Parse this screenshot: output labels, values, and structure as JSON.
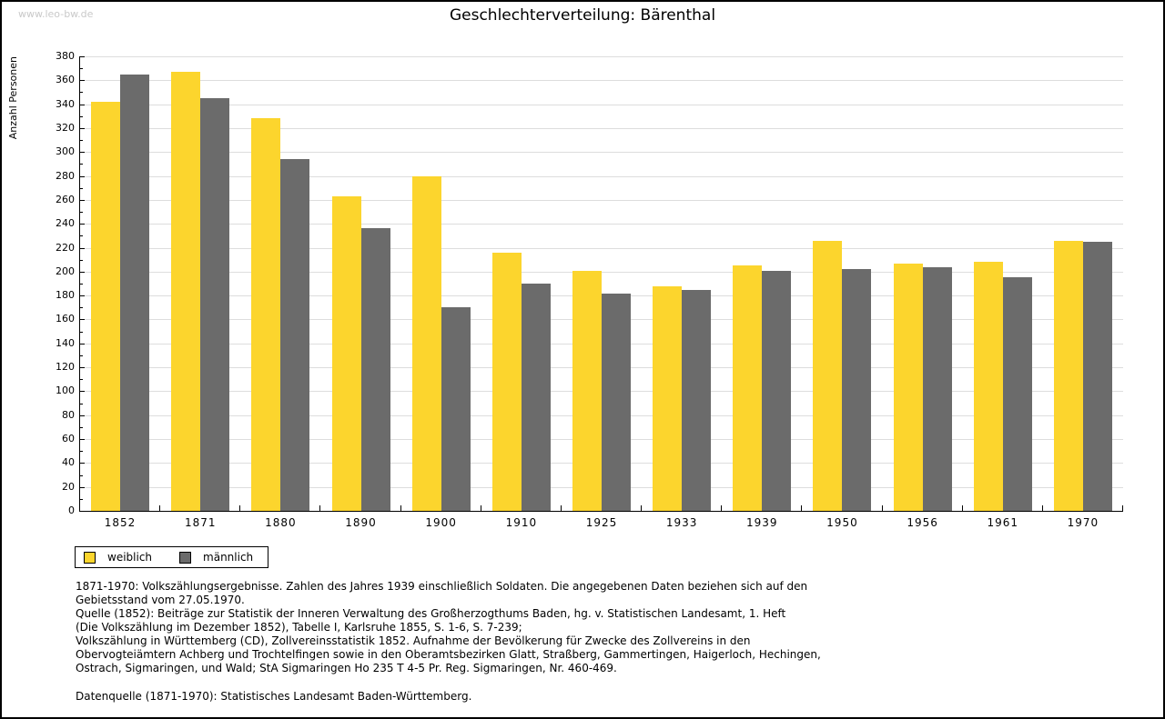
{
  "watermark": "www.leo-bw.de",
  "title": "Geschlechterverteilung: Bärenthal",
  "chart_data": {
    "type": "bar",
    "title": "Geschlechterverteilung: Bärenthal",
    "xlabel": "",
    "ylabel": "Anzahl Personen",
    "ylim": [
      0,
      380
    ],
    "ytick_step": 20,
    "ytick_minor_step": 10,
    "grid": true,
    "legend_position": "bottom-left",
    "categories": [
      "1852",
      "1871",
      "1880",
      "1890",
      "1900",
      "1910",
      "1925",
      "1933",
      "1939",
      "1950",
      "1956",
      "1961",
      "1970"
    ],
    "series": [
      {
        "name": "weiblich",
        "color": "#fcd52d",
        "values": [
          342,
          367,
          328,
          263,
          280,
          216,
          201,
          188,
          205,
          226,
          207,
          208,
          226
        ]
      },
      {
        "name": "männlich",
        "color": "#6b6b6b",
        "values": [
          365,
          345,
          294,
          236,
          170,
          190,
          182,
          185,
          201,
          202,
          204,
          195,
          225
        ]
      }
    ]
  },
  "legend": {
    "items": [
      {
        "label": "weiblich",
        "color": "#fcd52d"
      },
      {
        "label": "männlich",
        "color": "#6b6b6b"
      }
    ]
  },
  "footnotes": {
    "lines": [
      "1871-1970: Volkszählungsergebnisse. Zahlen des Jahres 1939 einschließlich Soldaten. Die angegebenen Daten beziehen sich auf den",
      "Gebietsstand vom 27.05.1970.",
      "Quelle (1852): Beiträge zur Statistik der Inneren Verwaltung des Großherzogthums Baden, hg. v. Statistischen Landesamt, 1. Heft",
      "(Die Volkszählung im Dezember 1852), Tabelle I, Karlsruhe 1855, S. 1-6, S. 7-239;",
      "Volkszählung in Württemberg (CD), Zollvereinsstatistik 1852. Aufnahme der Bevölkerung für Zwecke des Zollvereins in den",
      "Obervogteiämtern Achberg und Trochtelfingen sowie in den Oberamtsbezirken Glatt, Straßberg, Gammertingen, Haigerloch, Hechingen,",
      "Ostrach, Sigmaringen, und Wald; StA Sigmaringen Ho 235 T 4-5 Pr. Reg. Sigmaringen, Nr. 460-469."
    ],
    "datasource": "Datenquelle (1871-1970): Statistisches Landesamt Baden-Württemberg."
  },
  "colors": {
    "bar_female": "#fcd52d",
    "bar_male": "#6b6b6b",
    "gridline": "#dddddd",
    "axis": "#000000",
    "watermark": "#c9c9c9",
    "background": "#ffffff"
  }
}
